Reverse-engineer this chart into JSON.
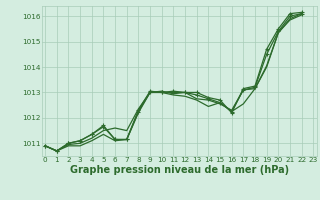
{
  "title": "Graphe pression niveau de la mer (hPa)",
  "background_color": "#d4ede0",
  "grid_color": "#a8ccb8",
  "line_color": "#2d6b2d",
  "xlim": [
    -0.3,
    23.3
  ],
  "ylim": [
    1010.5,
    1016.4
  ],
  "yticks": [
    1011,
    1012,
    1013,
    1014,
    1015,
    1016
  ],
  "xticks": [
    0,
    1,
    2,
    3,
    4,
    5,
    6,
    7,
    8,
    9,
    10,
    11,
    12,
    13,
    14,
    15,
    16,
    17,
    18,
    19,
    20,
    21,
    22,
    23
  ],
  "series": [
    {
      "x": [
        0,
        1,
        2,
        3,
        4,
        5,
        6,
        7,
        8,
        9,
        10,
        11,
        12,
        13,
        14,
        15,
        16,
        17,
        18,
        19,
        20,
        21,
        22
      ],
      "y": [
        1010.9,
        1010.7,
        1010.9,
        1010.9,
        1011.1,
        1011.35,
        1011.1,
        1011.15,
        1012.2,
        1013.0,
        1013.0,
        1012.9,
        1012.85,
        1012.7,
        1012.45,
        1012.6,
        1012.25,
        1012.55,
        1013.15,
        1014.0,
        1015.35,
        1015.85,
        1016.05
      ],
      "marker": false,
      "lw": 0.9
    },
    {
      "x": [
        0,
        1,
        2,
        3,
        4,
        5,
        6,
        7,
        8,
        9,
        10,
        11,
        12,
        13,
        14,
        15,
        16,
        17,
        18,
        19,
        20,
        21,
        22
      ],
      "y": [
        1010.9,
        1010.7,
        1010.95,
        1011.0,
        1011.2,
        1011.5,
        1011.6,
        1011.5,
        1012.35,
        1013.0,
        1013.05,
        1012.95,
        1013.0,
        1012.75,
        1012.7,
        1012.55,
        1012.3,
        1013.1,
        1013.15,
        1014.05,
        1015.35,
        1015.9,
        1016.1
      ],
      "marker": false,
      "lw": 0.9
    },
    {
      "x": [
        0,
        1,
        2,
        3,
        4,
        5,
        6,
        7,
        8,
        9,
        10,
        11,
        12,
        13,
        14,
        15,
        16,
        17,
        18,
        19,
        20,
        21,
        22
      ],
      "y": [
        1010.9,
        1010.7,
        1011.0,
        1011.1,
        1011.35,
        1011.65,
        1011.15,
        1011.15,
        1012.25,
        1013.0,
        1013.0,
        1013.0,
        1013.0,
        1012.9,
        1012.75,
        1012.6,
        1012.25,
        1013.1,
        1013.2,
        1014.5,
        1015.4,
        1016.0,
        1016.1
      ],
      "marker": true,
      "lw": 0.9
    },
    {
      "x": [
        0,
        1,
        2,
        3,
        4,
        5,
        6,
        7,
        8,
        9,
        10,
        11,
        12,
        13,
        14,
        15,
        16,
        17,
        18,
        19,
        20,
        21,
        22
      ],
      "y": [
        1010.9,
        1010.7,
        1011.0,
        1011.1,
        1011.35,
        1011.7,
        1011.15,
        1011.15,
        1012.3,
        1013.05,
        1013.0,
        1013.05,
        1013.0,
        1013.0,
        1012.8,
        1012.7,
        1012.2,
        1013.15,
        1013.25,
        1014.7,
        1015.5,
        1016.1,
        1016.15
      ],
      "marker": true,
      "lw": 0.9
    }
  ],
  "tick_fontsize": 5.2,
  "title_fontsize": 7.0
}
